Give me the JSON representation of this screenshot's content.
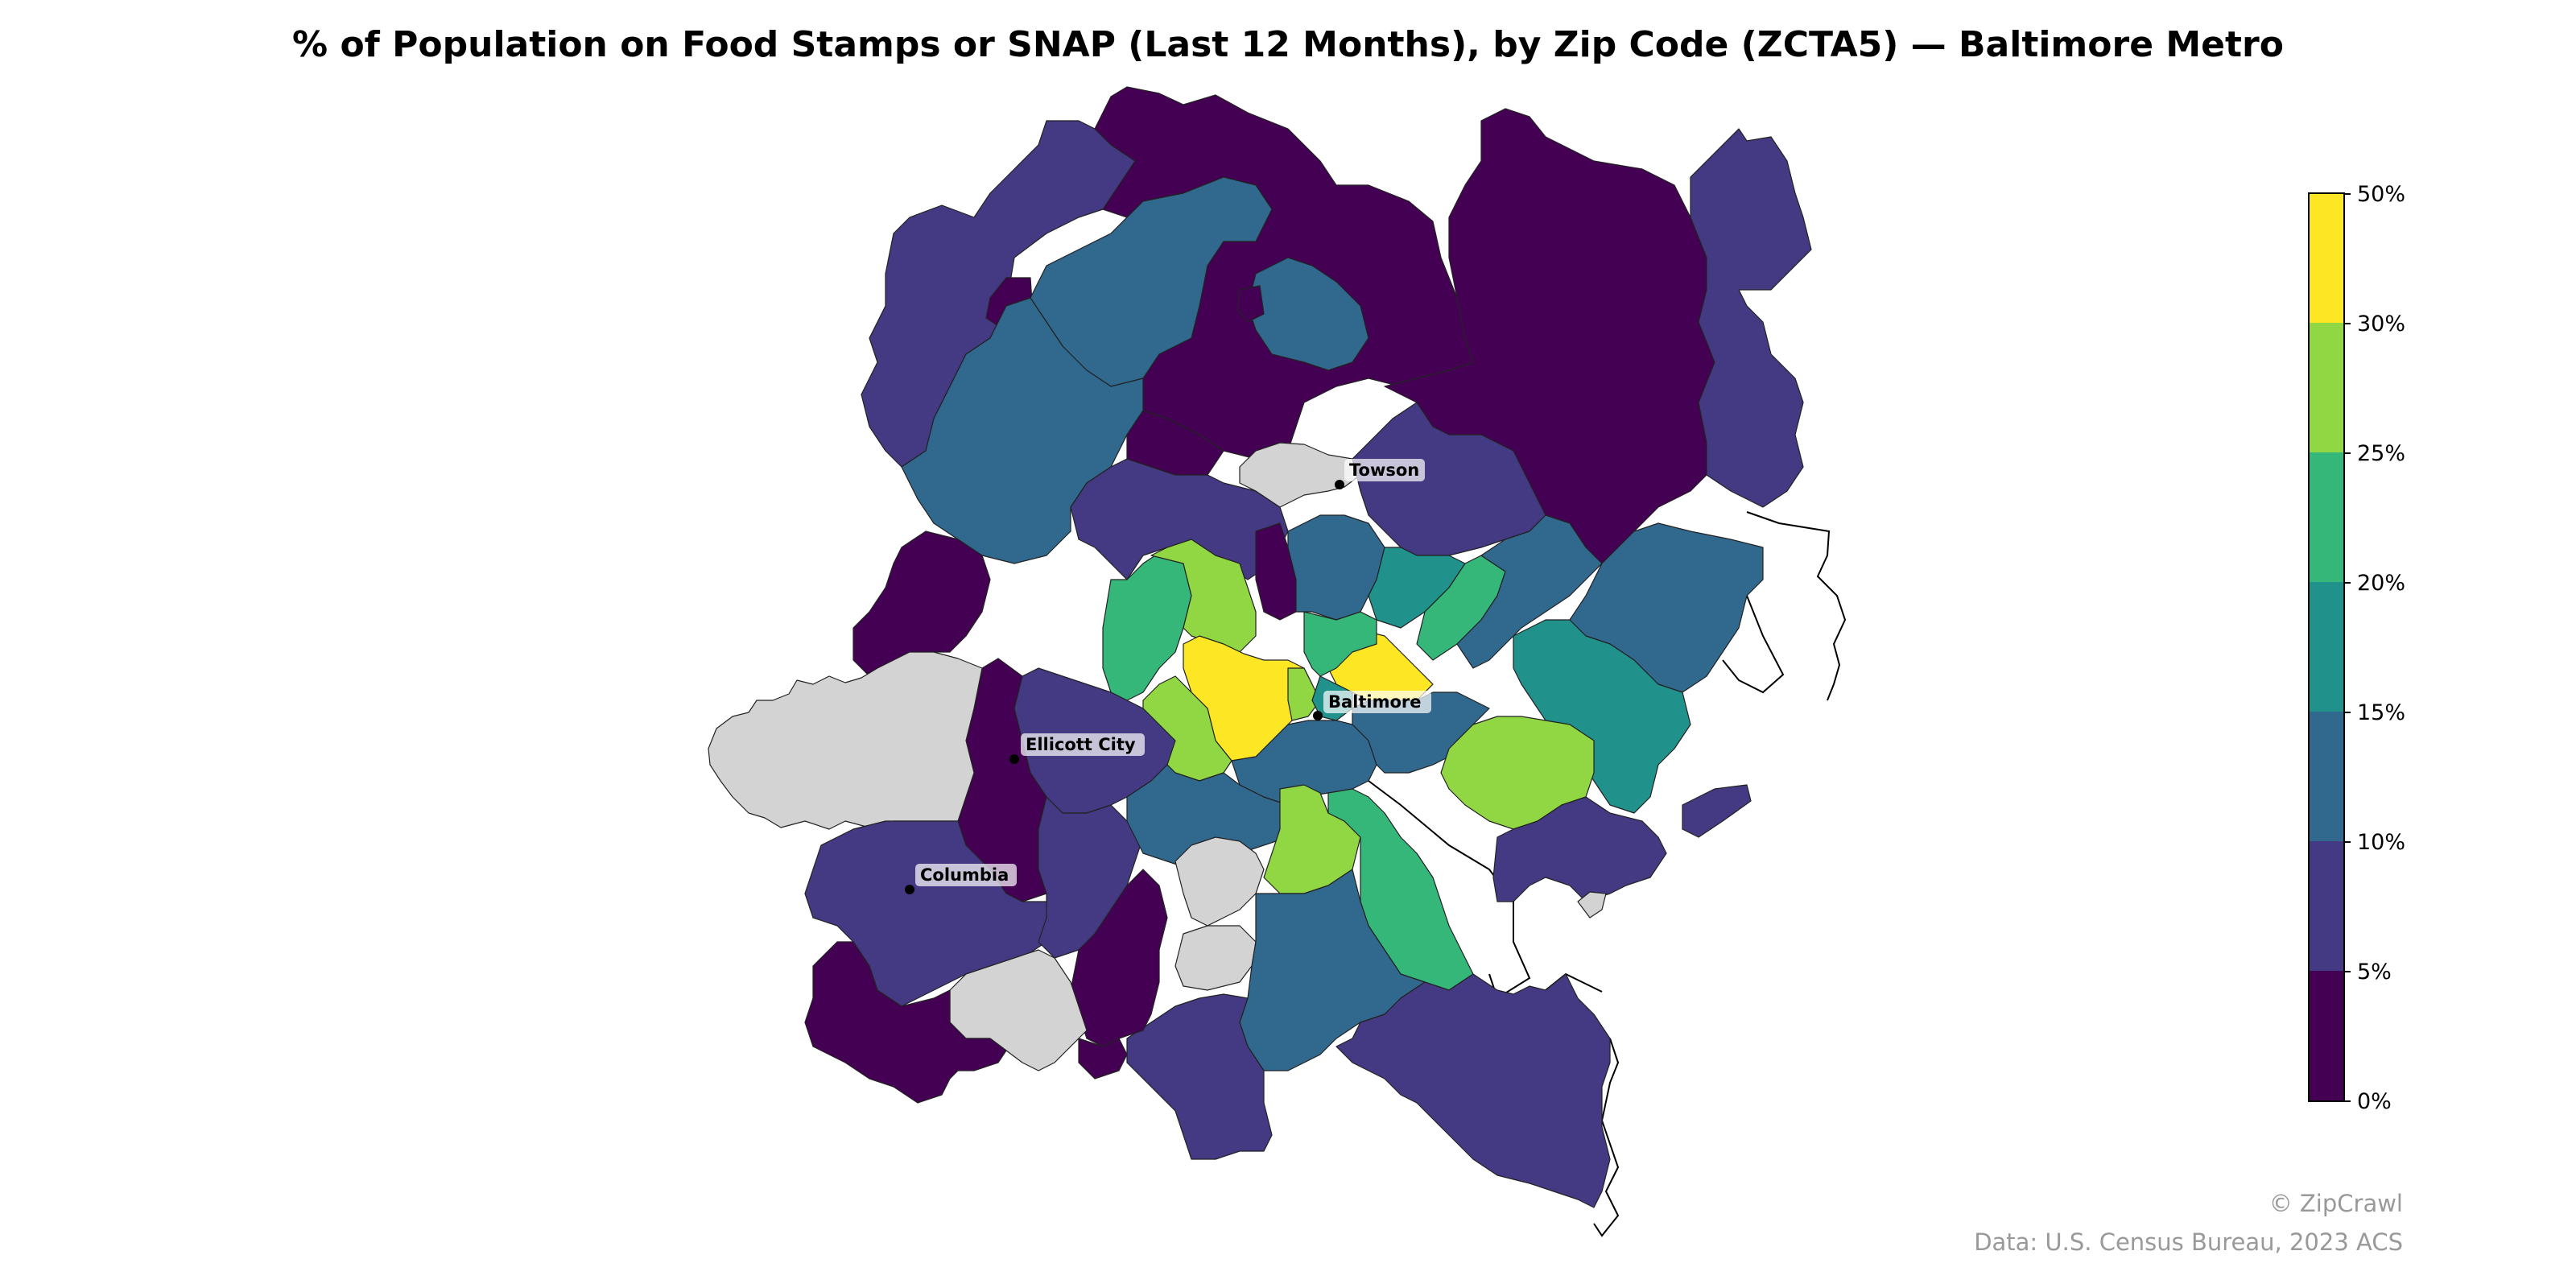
{
  "title": "% of Population on Food Stamps or SNAP (Last 12 Months), by Zip Code (ZCTA5) — Baltimore Metro",
  "cities": [
    {
      "name": "Towson"
    },
    {
      "name": "Baltimore"
    },
    {
      "name": "Ellicott City"
    },
    {
      "name": "Columbia"
    }
  ],
  "legend": {
    "tick_labels": [
      "0%",
      "5%",
      "10%",
      "15%",
      "20%",
      "25%",
      "30%",
      "50%"
    ],
    "bins": [
      {
        "range": "0%–5%",
        "color": "#440154"
      },
      {
        "range": "5%–10%",
        "color": "#443983"
      },
      {
        "range": "10%–15%",
        "color": "#31688e"
      },
      {
        "range": "15%–20%",
        "color": "#21918c"
      },
      {
        "range": "20%–25%",
        "color": "#35b779"
      },
      {
        "range": "25%–30%",
        "color": "#90d743"
      },
      {
        "range": "30%–50%",
        "color": "#fde725"
      }
    ],
    "no_data_color": "#d3d3d3",
    "placement": "right"
  },
  "footer": {
    "credit": "© ZipCrawl",
    "source": "Data: U.S. Census Bureau, 2023 ACS"
  }
}
